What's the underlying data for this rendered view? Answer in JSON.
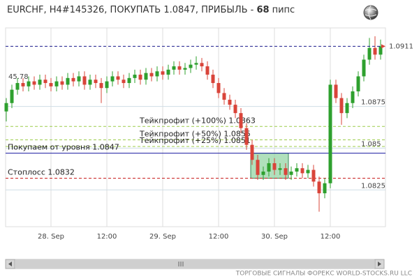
{
  "title_prefix": "EURCHF, H4#145326, ПОКУПАТЬ 1.0847, ПРИБЫЛЬ - ",
  "title_profit": 68,
  "title_unit": "пипс",
  "indicator_label": "45.78",
  "footer": "ТОРГОВЫЕ СИГНАЛЫ ФОРЕКС WORLD-STOCKS.RU LLC",
  "chart_data": {
    "type": "candlestick",
    "categories": [
      null,
      null,
      null,
      null,
      null,
      null,
      null,
      null,
      "28. Sep",
      null,
      null,
      null,
      null,
      null,
      null,
      null,
      null,
      null,
      "12:00",
      null,
      null,
      null,
      null,
      null,
      null,
      null,
      null,
      null,
      "29. Sep",
      null,
      null,
      null,
      null,
      null,
      null,
      null,
      null,
      null,
      "12:00",
      null,
      null,
      null,
      null,
      null,
      null,
      null,
      null,
      null,
      "30. Sep",
      null,
      null,
      null,
      null,
      null,
      null,
      null,
      null,
      null,
      "12:00",
      null,
      null,
      null,
      null,
      null,
      null,
      null,
      null,
      null
    ],
    "open": [
      1.0872,
      1.0877,
      1.0885,
      1.0889,
      1.0887,
      1.089,
      1.0888,
      1.0891,
      1.0889,
      1.0887,
      1.089,
      1.0888,
      1.0892,
      1.089,
      1.0893,
      1.0888,
      1.0891,
      1.0889,
      1.0886,
      1.089,
      1.0893,
      1.0891,
      1.0889,
      1.0892,
      1.0894,
      1.0891,
      1.0895,
      1.0893,
      1.0896,
      1.0894,
      1.0897,
      1.0899,
      1.0897,
      1.0898,
      1.09,
      1.0901,
      1.0899,
      1.0894,
      1.0889,
      1.0883,
      1.0879,
      1.0876,
      1.0871,
      1.0862,
      1.0852,
      1.0843,
      1.0834,
      1.0836,
      1.0841,
      1.0837,
      1.0838,
      1.0834,
      1.0836,
      1.0838,
      1.0835,
      1.0837,
      1.083,
      1.0823,
      1.0829,
      1.0888,
      1.088,
      1.0871,
      1.0877,
      1.0884,
      1.0893,
      1.0903,
      1.091,
      1.0906
    ],
    "high": [
      1.088,
      1.0888,
      1.0892,
      1.0892,
      1.0893,
      1.0893,
      1.0894,
      1.0894,
      1.0892,
      1.0893,
      1.0893,
      1.0895,
      1.0895,
      1.0896,
      1.0896,
      1.0894,
      1.0894,
      1.0892,
      1.0893,
      1.0896,
      1.0896,
      1.0894,
      1.0895,
      1.0897,
      1.0897,
      1.0898,
      1.0898,
      1.0899,
      1.0899,
      1.09,
      1.0902,
      1.0902,
      1.0901,
      1.0903,
      1.0905,
      1.0904,
      1.0902,
      1.0897,
      1.0892,
      1.0886,
      1.0882,
      1.0879,
      1.0874,
      1.0865,
      1.0855,
      1.0846,
      1.0839,
      1.0844,
      1.0844,
      1.0841,
      1.0841,
      1.0839,
      1.0841,
      1.0841,
      1.084,
      1.084,
      1.0833,
      1.0832,
      1.0891,
      1.0891,
      1.0883,
      1.088,
      1.0887,
      1.0896,
      1.0906,
      1.0916,
      1.0917,
      1.0915
    ],
    "low": [
      1.0866,
      1.0874,
      1.0882,
      1.0884,
      1.0884,
      1.0885,
      1.0885,
      1.0886,
      1.0884,
      1.0884,
      1.0885,
      1.0885,
      1.0887,
      1.0887,
      1.0885,
      1.0885,
      1.0886,
      1.0877,
      1.0883,
      1.0887,
      1.0888,
      1.0886,
      1.0886,
      1.0889,
      1.0888,
      1.0888,
      1.089,
      1.089,
      1.0891,
      1.0891,
      1.0894,
      1.0894,
      1.0894,
      1.0895,
      1.0897,
      1.0896,
      1.0891,
      1.0886,
      1.088,
      1.0876,
      1.0873,
      1.0868,
      1.0859,
      1.0849,
      1.084,
      1.0831,
      1.0831,
      1.0833,
      1.0834,
      1.0834,
      1.0831,
      1.0831,
      1.0833,
      1.0832,
      1.0832,
      1.0827,
      1.0812,
      1.082,
      1.0826,
      1.0877,
      1.0864,
      1.0868,
      1.0874,
      1.0881,
      1.089,
      1.09,
      1.0903,
      1.0903
    ],
    "close": [
      1.0877,
      1.0885,
      1.0889,
      1.0887,
      1.089,
      1.0888,
      1.0891,
      1.0889,
      1.0887,
      1.089,
      1.0888,
      1.0892,
      1.089,
      1.0893,
      1.0888,
      1.0891,
      1.0889,
      1.0886,
      1.089,
      1.0893,
      1.0891,
      1.0889,
      1.0892,
      1.0894,
      1.0891,
      1.0895,
      1.0893,
      1.0896,
      1.0894,
      1.0897,
      1.0899,
      1.0897,
      1.0898,
      1.09,
      1.0901,
      1.0899,
      1.0894,
      1.0889,
      1.0883,
      1.0879,
      1.0876,
      1.0871,
      1.0862,
      1.0852,
      1.0843,
      1.0834,
      1.0836,
      1.0841,
      1.0837,
      1.0838,
      1.0834,
      1.0836,
      1.0838,
      1.0835,
      1.0837,
      1.083,
      1.0823,
      1.0829,
      1.0888,
      1.088,
      1.0871,
      1.0877,
      1.0884,
      1.0893,
      1.0903,
      1.091,
      1.0906,
      1.0911
    ],
    "up_color": "#2ea02e",
    "down_color": "#d9443a",
    "ylim": [
      1.0803,
      1.0922
    ],
    "yticks": [
      1.0825,
      1.085,
      1.0875
    ],
    "grid": true,
    "current_price": 1.0911,
    "current_price_color": "#1a1a8c",
    "levels": [
      {
        "label": "Тейкпрофит (+100%) 1.0863",
        "value": 1.0863,
        "color": "#9ccc4a",
        "style": "dashed"
      },
      {
        "label": "Тейкпрофит (+50%) 1.0855",
        "value": 1.0855,
        "color": "#9ccc4a",
        "style": "dashed"
      },
      {
        "label": "Тейкпрофит (+25%) 1.0851",
        "value": 1.0851,
        "color": "#9ccc4a",
        "style": "dashed"
      },
      {
        "label": "Покупаем от уровня 1.0847",
        "value": 1.0847,
        "color": "#1a1aa0",
        "style": "solid"
      },
      {
        "label": "Стоплосс 1.0832",
        "value": 1.0832,
        "color": "#c81e1e",
        "style": "dashed"
      }
    ]
  }
}
